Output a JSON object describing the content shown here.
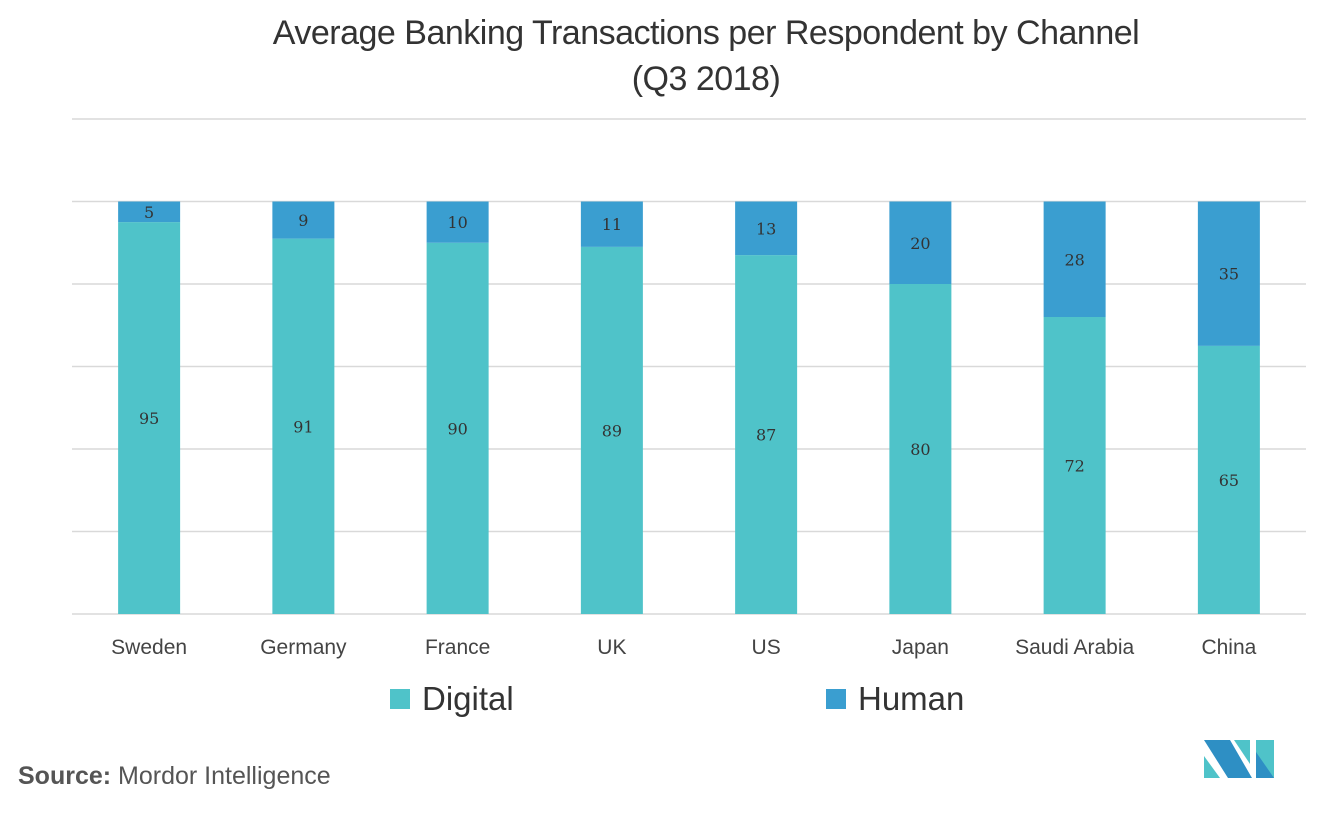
{
  "title_line1": "Average Banking Transactions per Respondent by Channel",
  "title_line2": "(Q3 2018)",
  "chart_data": {
    "type": "bar",
    "stacked": true,
    "title": "Average Banking Transactions per Respondent by Channel (Q3 2018)",
    "categories": [
      "Sweden",
      "Germany",
      "France",
      "UK",
      "US",
      "Japan",
      "Saudi Arabia",
      "China"
    ],
    "series": [
      {
        "name": "Digital",
        "color": "#4fc3c9",
        "values": [
          95,
          91,
          90,
          89,
          87,
          80,
          72,
          65
        ]
      },
      {
        "name": "Human",
        "color": "#3a9ed0",
        "values": [
          5,
          9,
          10,
          11,
          13,
          20,
          28,
          35
        ]
      }
    ],
    "ylim": [
      0,
      120
    ],
    "yticks": [
      0,
      20,
      40,
      60,
      80,
      100,
      120
    ],
    "grid": true,
    "legend": "bottom",
    "xlabel": "",
    "ylabel": ""
  },
  "source_label": "Source:",
  "source_text": "Mordor Intelligence",
  "logo_text": "MI"
}
